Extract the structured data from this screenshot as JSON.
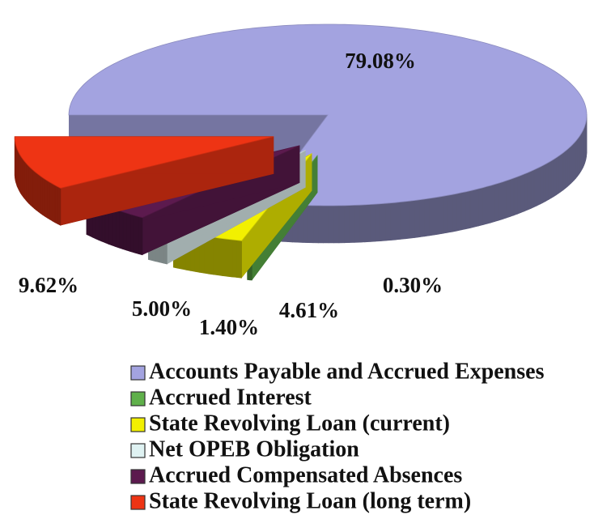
{
  "chart_data": {
    "type": "pie",
    "categories": [
      "Accounts Payable and Accrued Expenses",
      "Accrued Interest",
      "State Revolving Loan (current)",
      "Net OPEB Obligation",
      "Accrued Compensated Absences",
      "State Revolving Loan (long term)"
    ],
    "values": [
      79.08,
      0.3,
      4.61,
      1.4,
      5.0,
      9.62
    ],
    "value_labels": [
      "79.08%",
      "0.30%",
      "4.61%",
      "1.40%",
      "5.00%",
      "9.62%"
    ],
    "colors": [
      "#a3a3e0",
      "#5fb04a",
      "#f2f000",
      "#dff2f2",
      "#5c1a4e",
      "#ee3414"
    ]
  }
}
